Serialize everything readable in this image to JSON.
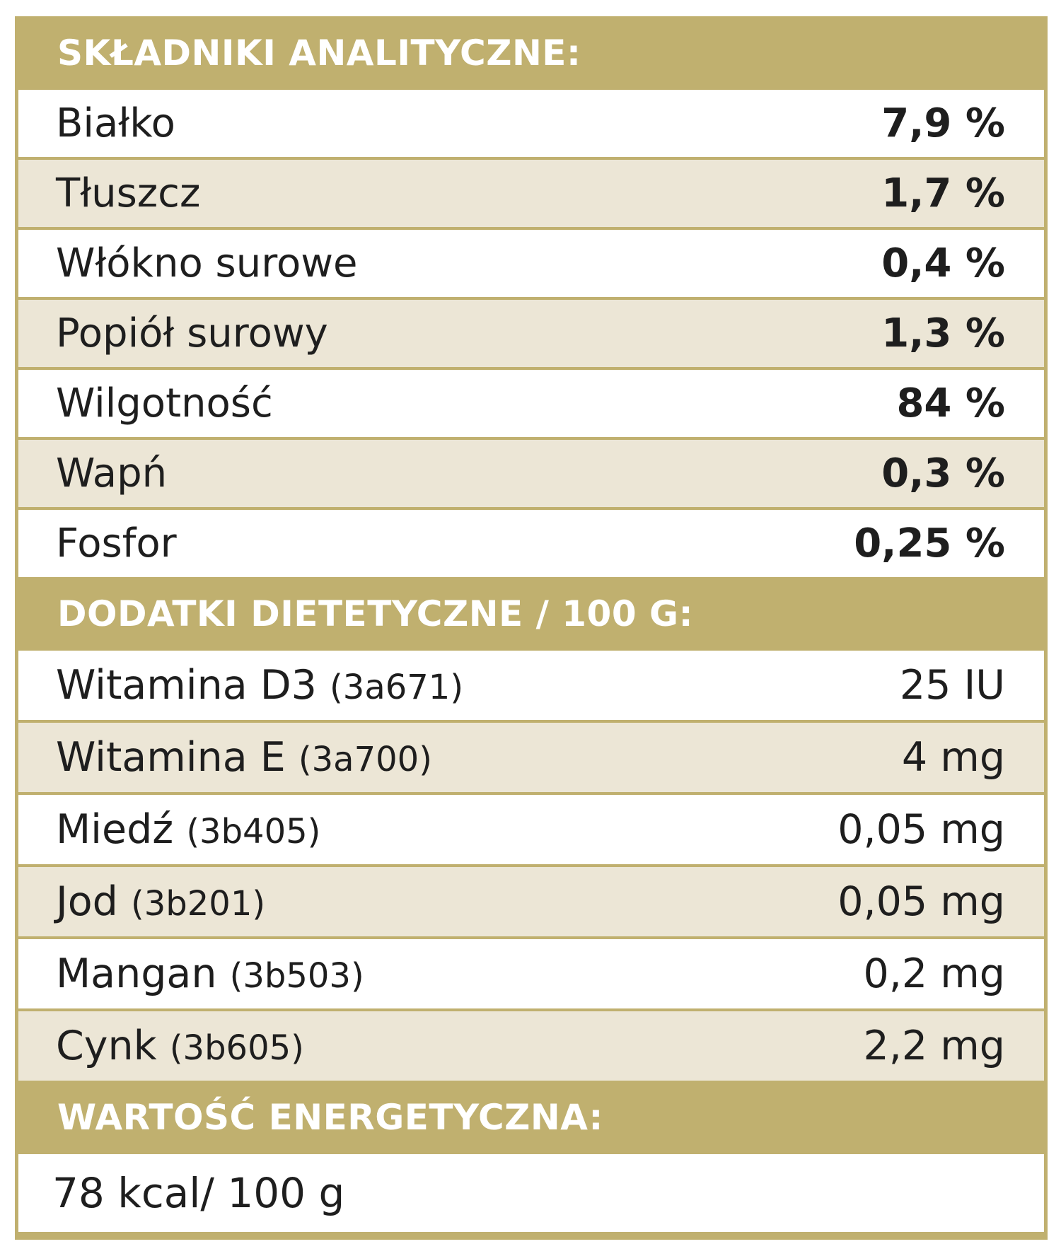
{
  "analytical": {
    "title": "SKŁADNIKI ANALITYCZNE:",
    "rows": [
      {
        "name": "Białko",
        "value": "7,9 %"
      },
      {
        "name": "Tłuszcz",
        "value": "1,7 %"
      },
      {
        "name": "Włókno surowe",
        "value": "0,4 %"
      },
      {
        "name": "Popiół surowy",
        "value": "1,3 %"
      },
      {
        "name": "Wilgotność",
        "value": "84 %"
      },
      {
        "name": "Wapń",
        "value": "0,3 %"
      },
      {
        "name": "Fosfor",
        "value": "0,25 %"
      }
    ]
  },
  "additives": {
    "title": "DODATKI DIETETYCZNE / 100 G:",
    "rows": [
      {
        "name": "Witamina D3",
        "code": "(3a671)",
        "value": "25 IU"
      },
      {
        "name": "Witamina E",
        "code": "(3a700)",
        "value": "4 mg"
      },
      {
        "name": "Miedź",
        "code": "(3b405)",
        "value": "0,05 mg"
      },
      {
        "name": "Jod",
        "code": "(3b201)",
        "value": "0,05 mg"
      },
      {
        "name": "Mangan",
        "code": "(3b503)",
        "value": "0,2 mg"
      },
      {
        "name": "Cynk",
        "code": "(3b605)",
        "value": "2,2 mg"
      }
    ]
  },
  "energy": {
    "title": "WARTOŚĆ ENERGETYCZNA:",
    "value": "78 kcal/ 100 g"
  }
}
